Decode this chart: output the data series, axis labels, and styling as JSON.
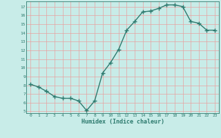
{
  "x": [
    0,
    1,
    2,
    3,
    4,
    5,
    6,
    7,
    8,
    9,
    10,
    11,
    12,
    13,
    14,
    15,
    16,
    17,
    18,
    19,
    20,
    21,
    22,
    23
  ],
  "y": [
    8.1,
    7.8,
    7.3,
    6.7,
    6.5,
    6.5,
    6.2,
    5.1,
    6.2,
    9.4,
    10.6,
    12.1,
    14.3,
    15.3,
    16.4,
    16.5,
    16.8,
    17.2,
    17.2,
    17.0,
    15.3,
    15.1,
    14.3,
    14.3
  ],
  "xlabel": "Humidex (Indice chaleur)",
  "xlim": [
    -0.5,
    23.5
  ],
  "ylim": [
    4.8,
    17.6
  ],
  "yticks": [
    5,
    6,
    7,
    8,
    9,
    10,
    11,
    12,
    13,
    14,
    15,
    16,
    17
  ],
  "xticks": [
    0,
    1,
    2,
    3,
    4,
    5,
    6,
    7,
    8,
    9,
    10,
    11,
    12,
    13,
    14,
    15,
    16,
    17,
    18,
    19,
    20,
    21,
    22,
    23
  ],
  "line_color": "#2d7a6e",
  "bg_color": "#c8ece8",
  "grid_color": "#e8a0a0",
  "tick_label_color": "#2d7a6e",
  "xlabel_color": "#2d7a6e",
  "spine_color": "#2d7a6e"
}
